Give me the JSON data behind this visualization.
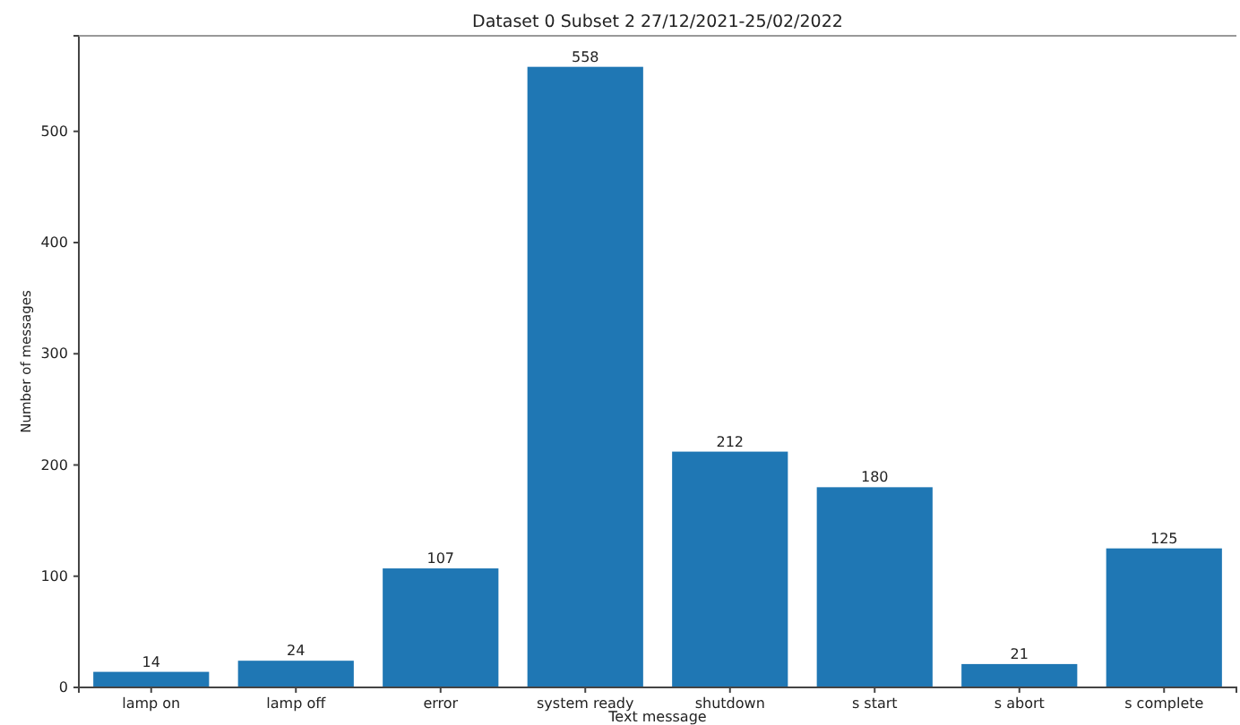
{
  "chart_data": {
    "type": "bar",
    "title": "Dataset 0 Subset 2 27/12/2021-25/02/2022",
    "xlabel": "Text message",
    "ylabel": "Number of messages",
    "categories": [
      "lamp on",
      "lamp off",
      "error",
      "system ready",
      "shutdown",
      "s start",
      "s abort",
      "s complete"
    ],
    "values": [
      14,
      24,
      107,
      558,
      212,
      180,
      21,
      125
    ],
    "color": "#1f77b4",
    "data_labels": true,
    "ylim": [
      0,
      585.9
    ],
    "yticks": [
      0,
      100,
      200,
      300,
      400,
      500
    ],
    "grid": false
  }
}
